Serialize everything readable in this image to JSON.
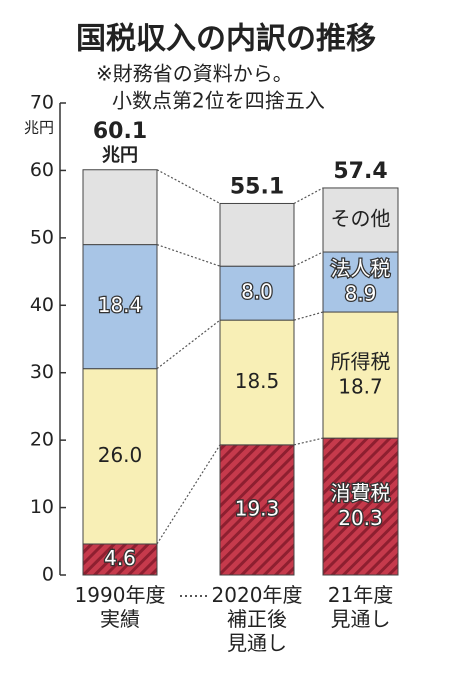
{
  "chart_data": {
    "type": "stacked_bar",
    "title": "国税収入の内訳の推移",
    "subtitle": [
      "※財務省の資料から。",
      "小数点第2位を四捨五入"
    ],
    "y_unit": "兆円",
    "categories": [
      "1990年度\n実績",
      "2020年度\n補正後\n見通し",
      "21年度\n見通し"
    ],
    "series": [
      {
        "name": "消費税",
        "color": "#c63a4c",
        "hatch": true,
        "values": [
          4.6,
          19.3,
          20.3
        ],
        "value_labels": [
          "4.6",
          "19.3",
          "20.3"
        ]
      },
      {
        "name": "所得税",
        "color": "#f8efb6",
        "values": [
          26.0,
          18.5,
          18.7
        ],
        "value_labels": [
          "26.0",
          "18.5",
          "18.7"
        ]
      },
      {
        "name": "法人税",
        "color": "#a8c5e6",
        "values": [
          18.4,
          8.0,
          8.9
        ],
        "value_labels": [
          "18.4",
          "8.0",
          "8.9"
        ]
      },
      {
        "name": "その他",
        "color": "#e2e2e2",
        "values": [
          11.1,
          9.3,
          9.5
        ]
      }
    ],
    "totals": [
      60.1,
      55.1,
      57.4
    ],
    "total_unit": "兆円",
    "ylim": [
      0,
      70
    ],
    "yticks": [
      0,
      10,
      20,
      30,
      40,
      50,
      60,
      70
    ]
  }
}
